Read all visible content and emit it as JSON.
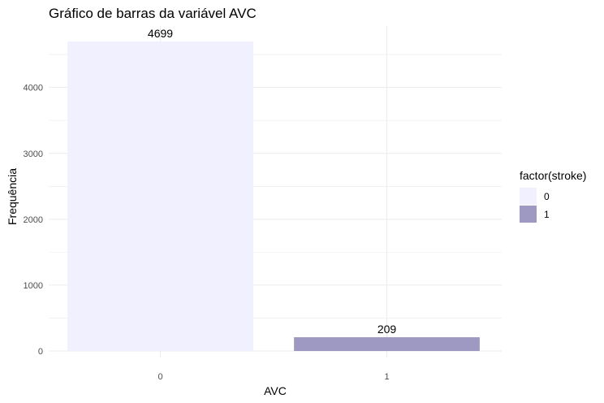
{
  "chart_data": {
    "type": "bar",
    "title": "Gráfico de barras da variável AVC",
    "xlabel": "AVC",
    "ylabel": "Frequência",
    "categories": [
      "0",
      "1"
    ],
    "values": [
      4699,
      209
    ],
    "data_labels": [
      "4699",
      "209"
    ],
    "colors": [
      "#f0f0ff",
      "#9e99c2"
    ],
    "ylim": [
      0,
      4699
    ],
    "yticks": [
      0,
      1000,
      2000,
      3000,
      4000
    ],
    "ytick_labels": [
      "0",
      "1000",
      "2000",
      "3000",
      "4000"
    ],
    "grid": true,
    "legend": {
      "title": "factor(stroke)",
      "position": "right",
      "entries": [
        "0",
        "1"
      ]
    }
  }
}
